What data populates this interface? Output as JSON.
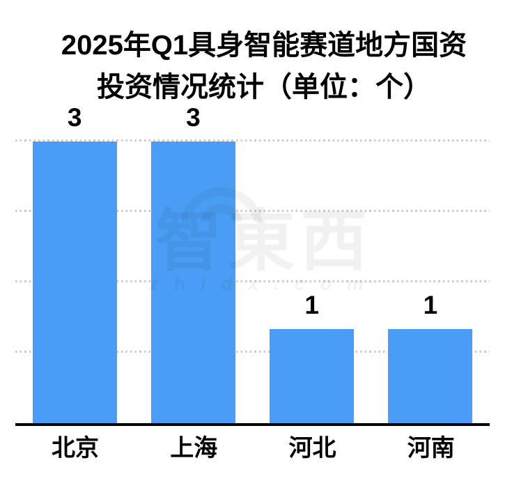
{
  "page": {
    "background": "#ffffff"
  },
  "title": {
    "line1": "2025年Q1具身智能赛道地方国资",
    "line2": "投资情况统计（单位：个）"
  },
  "chart_data": {
    "type": "bar",
    "title": "2025年Q1具身智能赛道地方国资投资情况统计（单位：个）",
    "categories": [
      "北京",
      "上海",
      "河北",
      "河南"
    ],
    "values": [
      3,
      3,
      1,
      1
    ],
    "value_labels": [
      "3",
      "3",
      "1",
      "1"
    ],
    "xlabel": "",
    "ylabel": "",
    "unit": "个",
    "ylim": [
      0,
      3
    ],
    "grid": {
      "visible": true,
      "style": "dotted",
      "color": "#c9c9c9",
      "levels": [
        0.75,
        1.5,
        2.25,
        3
      ]
    },
    "legend": {
      "visible": false
    },
    "bar_color": "#4A9DF6",
    "axis_color": "#000000",
    "label_color": "#000000"
  },
  "watermark": {
    "logo_text": "智東西",
    "domain_text": "zhidx.com",
    "color": "rgba(0,0,0,0.05)"
  }
}
